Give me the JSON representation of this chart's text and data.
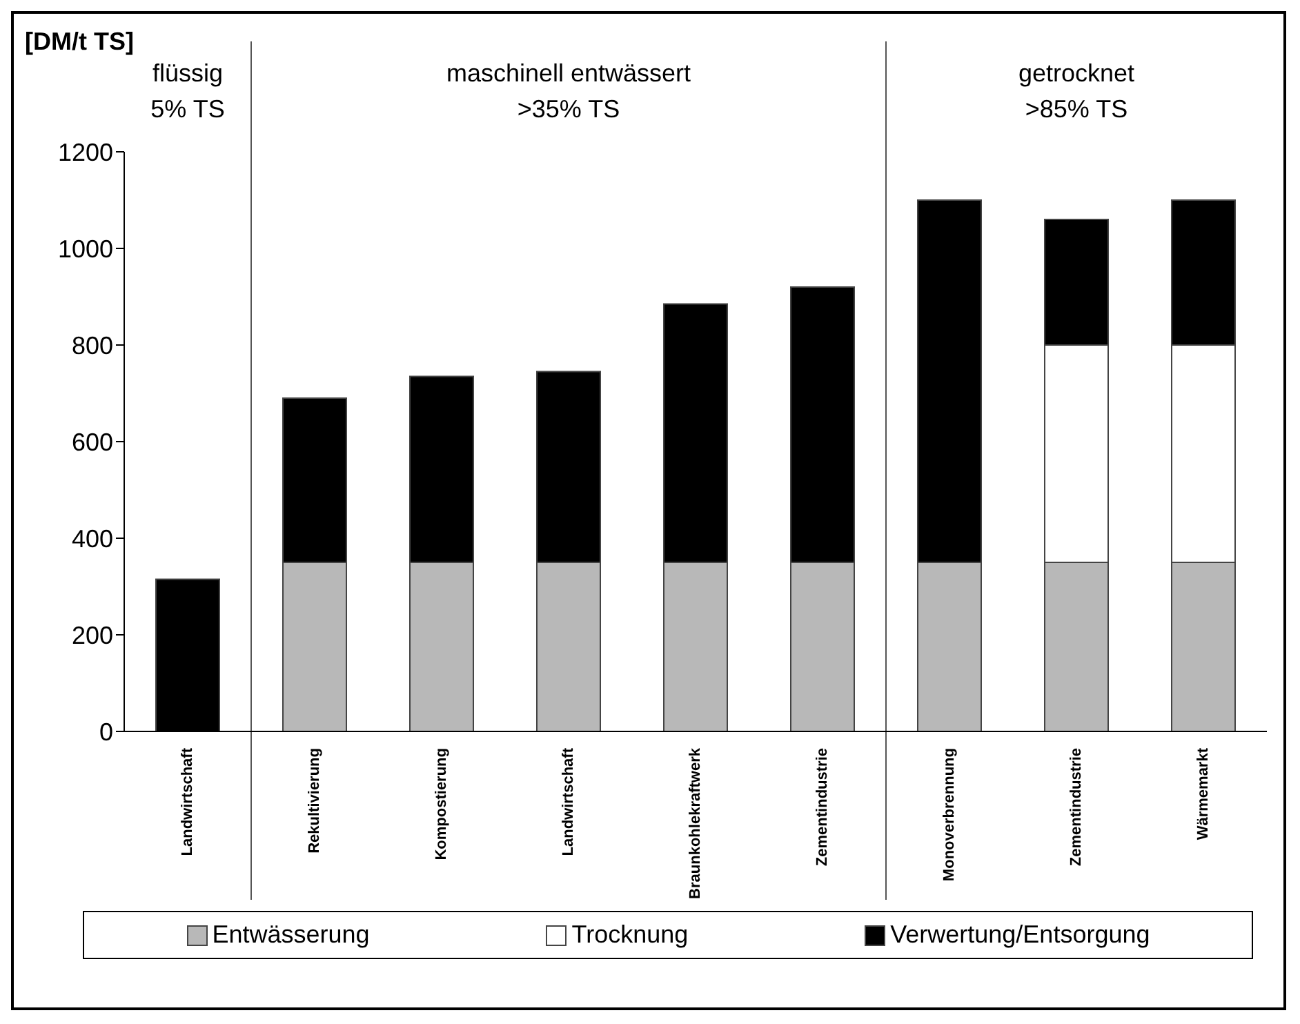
{
  "chart_data": {
    "type": "bar",
    "stacked": true,
    "ylabel": "[DM/t TS]",
    "categories": [
      "Landwirtschaft",
      "Rekultivierung",
      "Kompostierung",
      "Landwirtschaft",
      "Braunkohlekraftwerk",
      "Zementindustrie",
      "Monoverbrennung",
      "Zementindustrie",
      "Wärmemarkt"
    ],
    "series": [
      {
        "name": "Entwässerung",
        "color": "#b8b8b8",
        "values": [
          0,
          350,
          350,
          350,
          350,
          350,
          350,
          350,
          350
        ]
      },
      {
        "name": "Trocknung",
        "color": "#ffffff",
        "values": [
          0,
          0,
          0,
          0,
          0,
          0,
          0,
          450,
          450
        ]
      },
      {
        "name": "Verwertung/Entsorgung",
        "color": "#000000",
        "values": [
          315,
          340,
          385,
          395,
          535,
          570,
          750,
          260,
          300
        ]
      }
    ],
    "ylim": [
      0,
      1200
    ],
    "yticks": [
      0,
      200,
      400,
      600,
      800,
      1000,
      1200
    ],
    "grid": false,
    "legend": "bottom",
    "annotations": [
      "flüssig",
      "5% TS",
      "maschinell entwässert",
      ">35% TS",
      "getrocknet",
      ">85% TS"
    ]
  }
}
